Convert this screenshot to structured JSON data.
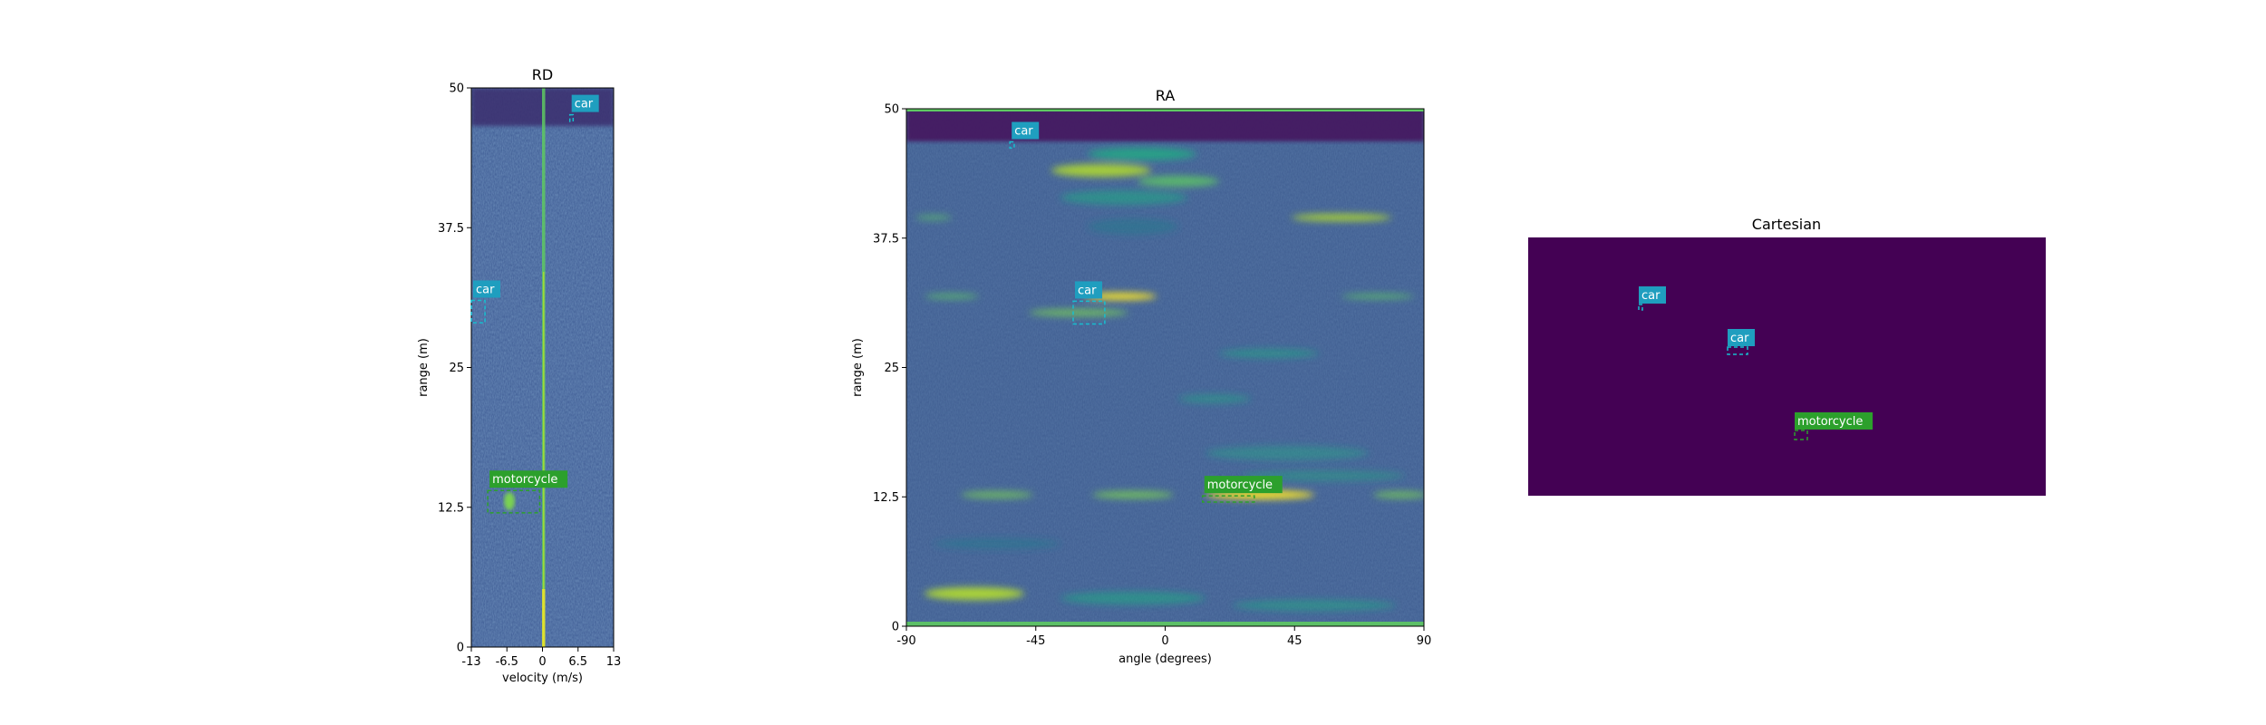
{
  "colors": {
    "bg_dark": "#440154",
    "bg_mid": "#3b528b",
    "line_green": "#5ec962",
    "hot_yellow": "#fde725",
    "car_label": "#1f9ebf",
    "car_box": "#17becf",
    "moto_label": "#2ca02c",
    "moto_box": "#2ca02c"
  },
  "chart_data": [
    {
      "type": "heatmap",
      "title": "RD",
      "xlabel": "velocity (m/s)",
      "ylabel": "range (m)",
      "xlim": [
        -13,
        13
      ],
      "ylim": [
        0,
        50
      ],
      "xticks": [
        "-13",
        "-6.5",
        "0",
        "6.5",
        "13"
      ],
      "yticks": [
        "0",
        "12.5",
        "25",
        "37.5",
        "50"
      ],
      "colormap": "viridis",
      "annotations": [
        {
          "label": "car",
          "class": "car",
          "x0": 5.0,
          "x1": 5.6,
          "y0": 47.0,
          "y1": 47.6
        },
        {
          "label": "car",
          "class": "car",
          "x0": -13.0,
          "x1": -10.5,
          "y0": 29.0,
          "y1": 31.0
        },
        {
          "label": "motorcycle",
          "class": "motorcycle",
          "x0": -10.0,
          "x1": -0.5,
          "y0": 12.0,
          "y1": 14.0
        }
      ]
    },
    {
      "type": "heatmap",
      "title": "RA",
      "xlabel": "angle (degrees)",
      "ylabel": "range (m)",
      "xlim": [
        -90,
        90
      ],
      "ylim": [
        0,
        50
      ],
      "xticks": [
        "-90",
        "-45",
        "0",
        "45",
        "90"
      ],
      "yticks": [
        "0",
        "12.5",
        "25",
        "37.5",
        "50"
      ],
      "colormap": "viridis",
      "annotations": [
        {
          "label": "car",
          "class": "car",
          "x0": -54.0,
          "x1": -52.5,
          "y0": 46.2,
          "y1": 46.8
        },
        {
          "label": "car",
          "class": "car",
          "x0": -32.0,
          "x1": -21.0,
          "y0": 29.2,
          "y1": 31.4
        },
        {
          "label": "motorcycle",
          "class": "motorcycle",
          "x0": 13.0,
          "x1": 31.0,
          "y0": 12.0,
          "y1": 12.6
        }
      ]
    },
    {
      "type": "heatmap",
      "title": "Cartesian",
      "annotations": [
        {
          "label": "car",
          "class": "car"
        },
        {
          "label": "car",
          "class": "car"
        },
        {
          "label": "motorcycle",
          "class": "motorcycle"
        }
      ]
    }
  ]
}
